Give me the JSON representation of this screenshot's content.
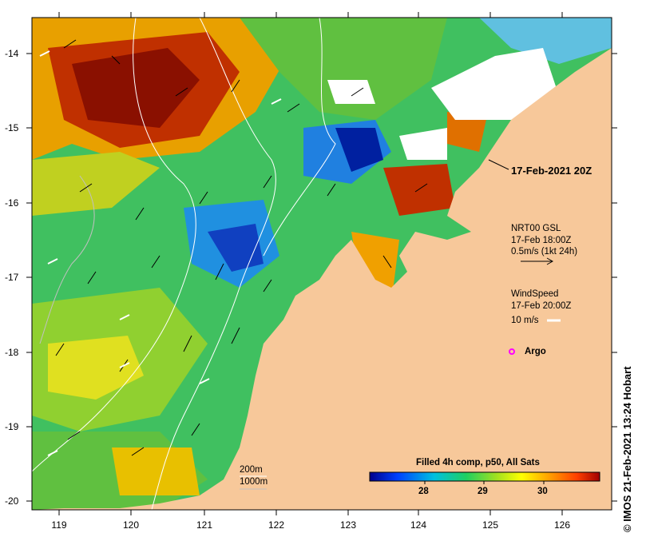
{
  "map": {
    "date_label": "17-Feb-2021 20Z",
    "lat_ticks": [
      "-14",
      "-15",
      "-16",
      "-17",
      "-18",
      "-19",
      "-20"
    ],
    "lon_ticks": [
      "119",
      "120",
      "121",
      "122",
      "123",
      "124",
      "125",
      "126"
    ],
    "credit": "© IMOS 21-Feb-2021 13:24 Hobart",
    "land_color": "#f7c89a",
    "cloud_color": "#ffffff"
  },
  "legend": {
    "current": {
      "title": "NRT00 GSL",
      "time": "17-Feb 18:00Z",
      "scale": "0.5m/s (1kt 24h)"
    },
    "wind": {
      "title": "WindSpeed",
      "time": "17-Feb 20:00Z",
      "scale": "10 m/s"
    },
    "argo": "Argo",
    "isobaths": [
      "200m",
      "1000m"
    ]
  },
  "colorbar": {
    "title": "Filled 4h comp, p50, All Sats",
    "ticks": [
      "28",
      "29",
      "30"
    ],
    "colors": [
      "#00008b",
      "#0040ff",
      "#00c0e0",
      "#20d060",
      "#a0e020",
      "#ffff00",
      "#ffa000",
      "#ff4000",
      "#a00000"
    ]
  }
}
